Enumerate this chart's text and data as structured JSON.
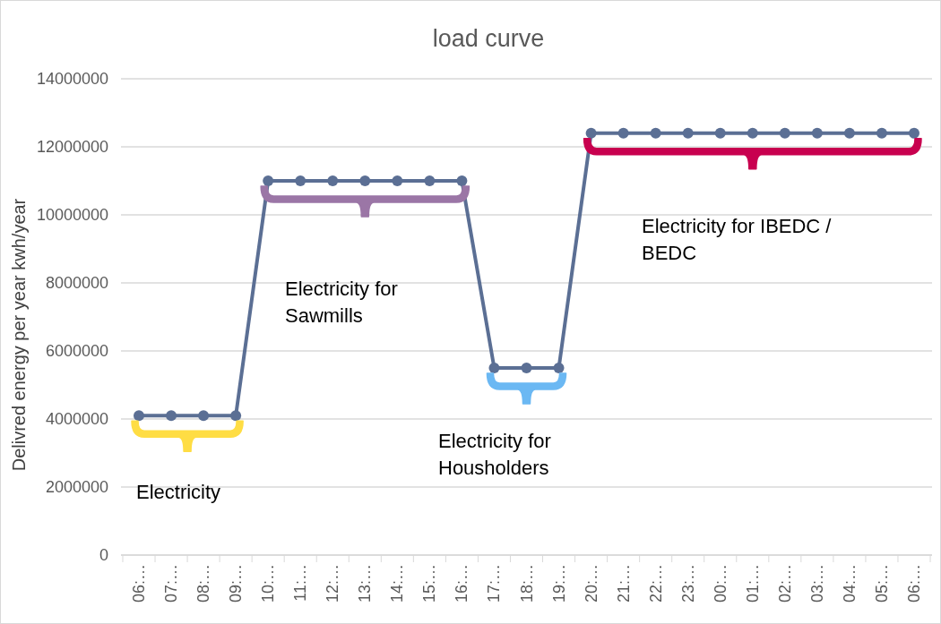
{
  "chart_data": {
    "type": "line",
    "title": "load curve",
    "ylabel": "Delivred energy per year kwh/year",
    "categories": [
      "06:…",
      "07:…",
      "08:…",
      "09:…",
      "10:…",
      "11:…",
      "12:…",
      "13:…",
      "14:…",
      "15:…",
      "16:…",
      "17:…",
      "18:…",
      "19:…",
      "20:…",
      "21:…",
      "22:…",
      "23:…",
      "00:…",
      "01:…",
      "02:…",
      "03:…",
      "04:…",
      "05:…",
      "06:…"
    ],
    "series": [
      {
        "color": "#5b6f94",
        "values": [
          4100000,
          4100000,
          4100000,
          4100000,
          11000000,
          11000000,
          11000000,
          11000000,
          11000000,
          11000000,
          11000000,
          5500000,
          5500000,
          5500000,
          12400000,
          12400000,
          12400000,
          12400000,
          12400000,
          12400000,
          12400000,
          12400000,
          12400000,
          12400000,
          12400000
        ]
      }
    ],
    "ylim": [
      0,
      14000000
    ],
    "yticks": [
      0,
      2000000,
      4000000,
      6000000,
      8000000,
      10000000,
      12000000,
      14000000
    ],
    "grid": "y",
    "marker": "circle",
    "line_style": "solid",
    "annotations": [
      "Electricity",
      "Electricity for Sawmills",
      "Electricity for Housholders",
      "Electricity for IBEDC / BEDC"
    ]
  }
}
